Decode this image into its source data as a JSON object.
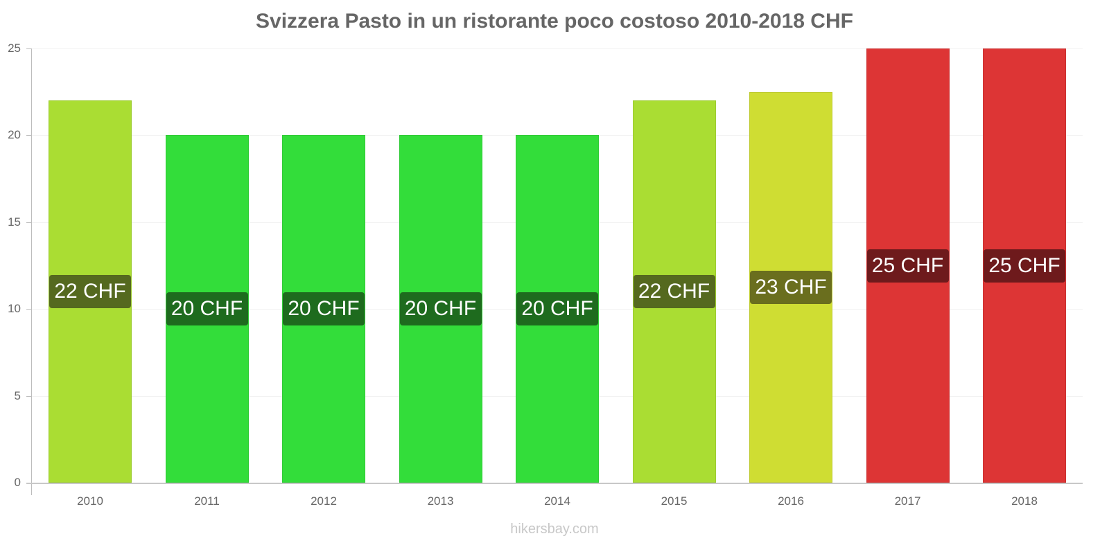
{
  "chart_data": {
    "type": "bar",
    "title": "Svizzera Pasto in un ristorante poco costoso 2010-2018 CHF",
    "categories": [
      "2010",
      "2011",
      "2012",
      "2013",
      "2014",
      "2015",
      "2016",
      "2017",
      "2018"
    ],
    "values": [
      22,
      20,
      20,
      20,
      20,
      22,
      22.5,
      25,
      25
    ],
    "data_labels": [
      "22 CHF",
      "20 CHF",
      "20 CHF",
      "20 CHF",
      "20 CHF",
      "22 CHF",
      "23 CHF",
      "25 CHF",
      "25 CHF"
    ],
    "bar_colors": [
      "#aadd33",
      "#33dd3a",
      "#33dd3a",
      "#33dd3a",
      "#33dd3a",
      "#aadd33",
      "#cfdd33",
      "#dd3535",
      "#dd3535"
    ],
    "label_colors": [
      "#55691f",
      "#1e6b1e",
      "#1e6b1e",
      "#1e6b1e",
      "#1e6b1e",
      "#55691f",
      "#6a6e1e",
      "#6e1a1c",
      "#6e1a1c"
    ],
    "xlabel": "",
    "ylabel": "",
    "ylim": [
      0,
      25
    ],
    "yticks": [
      0,
      5,
      10,
      15,
      20,
      25
    ],
    "grid": true,
    "legend": null
  },
  "watermark": "hikersbay.com"
}
